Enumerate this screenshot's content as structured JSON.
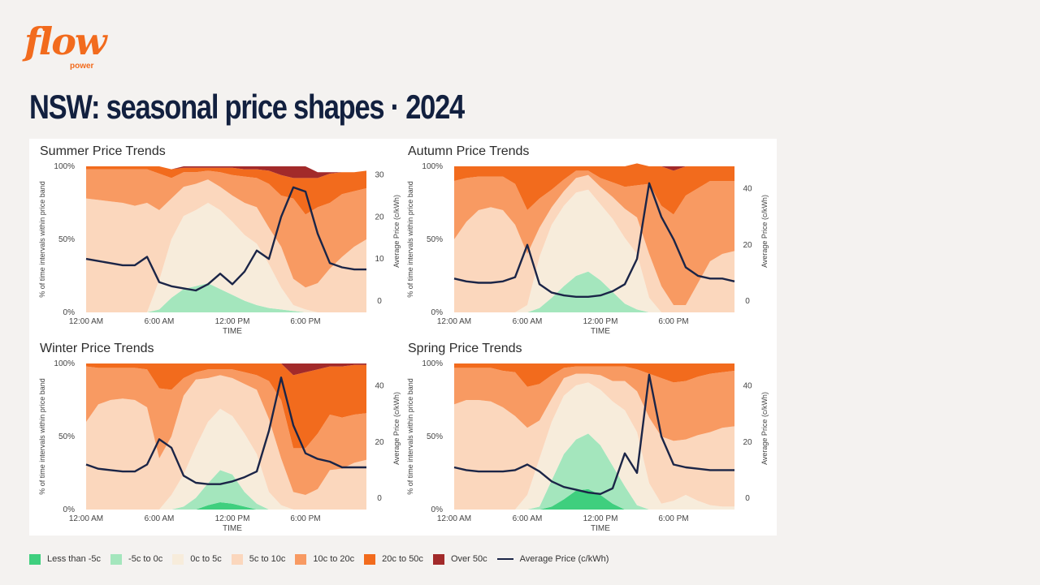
{
  "brand": {
    "logo_word": "flow",
    "logo_sub": "power",
    "color": "#f26b1d"
  },
  "page": {
    "title": "NSW: seasonal price shapes · 2024"
  },
  "bands": [
    {
      "name": "Less than -5c",
      "color": "#3fcf7e"
    },
    {
      "name": "-5c to 0c",
      "color": "#a4e6bd"
    },
    {
      "name": "0c to 5c",
      "color": "#f7ecdb"
    },
    {
      "name": "5c to 10c",
      "color": "#fbd7bd"
    },
    {
      "name": "10c to 20c",
      "color": "#f89a62"
    },
    {
      "name": "20c to 50c",
      "color": "#f26b1d"
    },
    {
      "name": "Over 50c",
      "color": "#a22a2a"
    }
  ],
  "line_legend": {
    "label": "Average Price (c/kWh)",
    "color": "#1b2547"
  },
  "chart_data": [
    {
      "type": "area",
      "title": "Summer Price Trends",
      "xlabel": "TIME",
      "ylabel_left": "% of time intervals within price band",
      "ylabel_right": "Average Price (c/kWh)",
      "x_ticks": [
        "12:00 AM",
        "6:00 AM",
        "12:00 PM",
        "6:00 PM"
      ],
      "y_left_ticks": [
        "0%",
        "50%",
        "100%"
      ],
      "y_right_ticks": [
        "0",
        "10",
        "20",
        "30"
      ],
      "y_right_max": 32,
      "bands_pct_by_hour": [
        [
          0,
          0,
          0,
          0,
          0,
          0,
          0,
          0,
          0,
          0,
          0,
          0,
          0,
          0,
          0,
          0,
          0,
          0,
          0,
          0,
          0,
          0,
          0,
          0
        ],
        [
          0,
          0,
          0,
          0,
          0,
          0,
          2,
          10,
          16,
          18,
          20,
          16,
          12,
          8,
          5,
          3,
          2,
          1,
          0,
          0,
          0,
          0,
          0,
          0
        ],
        [
          0,
          0,
          0,
          0,
          0,
          0,
          20,
          40,
          50,
          52,
          55,
          54,
          50,
          45,
          42,
          30,
          15,
          4,
          2,
          0,
          0,
          0,
          0,
          0
        ],
        [
          78,
          77,
          76,
          75,
          73,
          75,
          48,
          28,
          20,
          18,
          16,
          16,
          18,
          22,
          25,
          25,
          28,
          18,
          15,
          20,
          30,
          38,
          45,
          50
        ],
        [
          20,
          21,
          22,
          23,
          25,
          23,
          25,
          14,
          10,
          8,
          6,
          10,
          14,
          18,
          20,
          30,
          35,
          55,
          50,
          52,
          45,
          43,
          38,
          35
        ],
        [
          2,
          2,
          2,
          2,
          2,
          2,
          5,
          6,
          3,
          3,
          2,
          3,
          5,
          5,
          6,
          9,
          14,
          14,
          25,
          20,
          20,
          15,
          13,
          12
        ],
        [
          0,
          0,
          0,
          0,
          0,
          0,
          0,
          0,
          1,
          1,
          1,
          1,
          1,
          2,
          2,
          3,
          6,
          8,
          8,
          4,
          1,
          0,
          0,
          0
        ]
      ],
      "avg_price_by_hour": [
        10,
        9.5,
        9,
        8.5,
        8.5,
        10.5,
        4.5,
        3.5,
        3,
        2.5,
        4,
        6.5,
        4,
        7,
        12,
        10,
        20,
        27,
        26,
        16,
        9,
        8,
        7.5,
        7.5
      ]
    },
    {
      "type": "area",
      "title": "Autumn Price Trends",
      "xlabel": "TIME",
      "ylabel_left": "% of time intervals within price band",
      "ylabel_right": "Average Price (c/kWh)",
      "x_ticks": [
        "12:00 AM",
        "6:00 AM",
        "12:00 PM",
        "6:00 PM"
      ],
      "y_left_ticks": [
        "0%",
        "50%",
        "100%"
      ],
      "y_right_ticks": [
        "0",
        "20",
        "40"
      ],
      "y_right_max": 48,
      "bands_pct_by_hour": [
        [
          0,
          0,
          0,
          0,
          0,
          0,
          0,
          0,
          0,
          0,
          0,
          0,
          0,
          0,
          0,
          0,
          0,
          0,
          0,
          0,
          0,
          0,
          0,
          0
        ],
        [
          0,
          0,
          0,
          0,
          0,
          0,
          0,
          3,
          10,
          18,
          25,
          28,
          22,
          14,
          6,
          2,
          0,
          0,
          0,
          0,
          0,
          0,
          0,
          0
        ],
        [
          0,
          0,
          0,
          0,
          0,
          0,
          5,
          35,
          50,
          55,
          57,
          56,
          52,
          50,
          45,
          38,
          10,
          0,
          0,
          0,
          0,
          0,
          0,
          0
        ],
        [
          50,
          62,
          70,
          72,
          70,
          60,
          35,
          20,
          12,
          10,
          10,
          10,
          12,
          15,
          20,
          25,
          30,
          18,
          5,
          5,
          20,
          35,
          40,
          42
        ],
        [
          40,
          30,
          23,
          21,
          23,
          28,
          30,
          20,
          12,
          8,
          5,
          3,
          6,
          10,
          15,
          22,
          48,
          55,
          62,
          75,
          65,
          55,
          50,
          48
        ],
        [
          10,
          8,
          7,
          7,
          7,
          12,
          30,
          22,
          16,
          9,
          3,
          3,
          8,
          11,
          14,
          15,
          12,
          27,
          30,
          20,
          15,
          10,
          10,
          10
        ],
        [
          0,
          0,
          0,
          0,
          0,
          0,
          0,
          0,
          0,
          0,
          0,
          0,
          0,
          0,
          0,
          0,
          0,
          0,
          3,
          0,
          0,
          0,
          0,
          0
        ]
      ],
      "avg_price_by_hour": [
        8,
        7,
        6.5,
        6.5,
        7,
        8.5,
        20,
        6,
        3,
        2,
        1.5,
        1.5,
        2,
        3.5,
        6,
        15,
        42,
        30,
        22,
        12,
        9,
        8,
        8,
        7
      ]
    },
    {
      "type": "area",
      "title": "Winter Price Trends",
      "xlabel": "TIME",
      "ylabel_left": "% of time intervals within price band",
      "ylabel_right": "Average Price (c/kWh)",
      "x_ticks": [
        "12:00 AM",
        "6:00 AM",
        "12:00 PM",
        "6:00 PM"
      ],
      "y_left_ticks": [
        "0%",
        "50%",
        "100%"
      ],
      "y_right_ticks": [
        "0",
        "20",
        "40"
      ],
      "y_right_max": 48,
      "bands_pct_by_hour": [
        [
          0,
          0,
          0,
          0,
          0,
          0,
          0,
          0,
          0,
          0,
          3,
          5,
          4,
          2,
          0,
          0,
          0,
          0,
          0,
          0,
          0,
          0,
          0,
          0
        ],
        [
          0,
          0,
          0,
          0,
          0,
          0,
          0,
          0,
          2,
          8,
          15,
          22,
          20,
          10,
          4,
          0,
          0,
          0,
          0,
          0,
          0,
          0,
          0,
          0
        ],
        [
          0,
          0,
          0,
          0,
          0,
          0,
          0,
          10,
          22,
          35,
          42,
          42,
          40,
          40,
          34,
          12,
          3,
          0,
          0,
          0,
          0,
          0,
          0,
          0
        ],
        [
          60,
          72,
          75,
          76,
          75,
          70,
          35,
          40,
          54,
          46,
          30,
          23,
          26,
          34,
          44,
          50,
          32,
          12,
          10,
          14,
          27,
          28,
          32,
          34
        ],
        [
          38,
          25,
          22,
          21,
          22,
          26,
          48,
          32,
          12,
          5,
          6,
          4,
          6,
          8,
          10,
          26,
          40,
          30,
          32,
          38,
          38,
          35,
          33,
          32
        ],
        [
          2,
          3,
          3,
          3,
          3,
          4,
          17,
          18,
          10,
          6,
          4,
          4,
          4,
          6,
          8,
          12,
          25,
          50,
          52,
          44,
          33,
          35,
          34,
          33
        ],
        [
          0,
          0,
          0,
          0,
          0,
          0,
          0,
          0,
          0,
          0,
          0,
          0,
          0,
          0,
          0,
          0,
          0,
          8,
          6,
          4,
          2,
          2,
          1,
          1
        ]
      ],
      "avg_price_by_hour": [
        12,
        10.5,
        10,
        9.5,
        9.5,
        12,
        21,
        18,
        8,
        5.5,
        5,
        5,
        6,
        7.5,
        9.5,
        24,
        43,
        26,
        16,
        14,
        13,
        11,
        11,
        11
      ]
    },
    {
      "type": "area",
      "title": "Spring Price Trends",
      "xlabel": "TIME",
      "ylabel_left": "% of time intervals within price band",
      "ylabel_right": "Average Price (c/kWh)",
      "x_ticks": [
        "12:00 AM",
        "6:00 AM",
        "12:00 PM",
        "6:00 PM"
      ],
      "y_left_ticks": [
        "0%",
        "50%",
        "100%"
      ],
      "y_right_ticks": [
        "0",
        "20",
        "40"
      ],
      "y_right_max": 48,
      "bands_pct_by_hour": [
        [
          0,
          0,
          0,
          0,
          0,
          0,
          0,
          0,
          2,
          7,
          13,
          14,
          10,
          4,
          0,
          0,
          0,
          0,
          0,
          0,
          0,
          0,
          0,
          0
        ],
        [
          0,
          0,
          0,
          0,
          0,
          0,
          0,
          2,
          18,
          31,
          35,
          38,
          34,
          26,
          16,
          3,
          0,
          0,
          0,
          0,
          0,
          0,
          0,
          0
        ],
        [
          0,
          0,
          0,
          0,
          0,
          0,
          10,
          33,
          40,
          40,
          37,
          35,
          38,
          44,
          52,
          50,
          18,
          4,
          6,
          10,
          6,
          3,
          2,
          2
        ],
        [
          72,
          75,
          75,
          74,
          70,
          64,
          46,
          26,
          16,
          12,
          8,
          6,
          10,
          14,
          20,
          28,
          45,
          46,
          41,
          38,
          45,
          50,
          54,
          55
        ],
        [
          25,
          22,
          22,
          23,
          25,
          30,
          28,
          25,
          16,
          7,
          5,
          5,
          6,
          10,
          10,
          15,
          30,
          40,
          40,
          40,
          40,
          40,
          38,
          38
        ],
        [
          3,
          3,
          3,
          3,
          5,
          6,
          16,
          14,
          8,
          3,
          2,
          2,
          2,
          2,
          2,
          4,
          7,
          10,
          13,
          12,
          9,
          7,
          6,
          5
        ],
        [
          0,
          0,
          0,
          0,
          0,
          0,
          0,
          0,
          0,
          0,
          0,
          0,
          0,
          0,
          0,
          0,
          0,
          0,
          0,
          0,
          0,
          0,
          0,
          0
        ]
      ],
      "avg_price_by_hour": [
        11,
        10,
        9.5,
        9.5,
        9.5,
        10,
        12,
        9.5,
        6,
        4,
        3,
        2,
        1.5,
        3.5,
        16,
        9,
        44,
        22,
        12,
        11,
        10.5,
        10,
        10,
        10
      ]
    }
  ]
}
